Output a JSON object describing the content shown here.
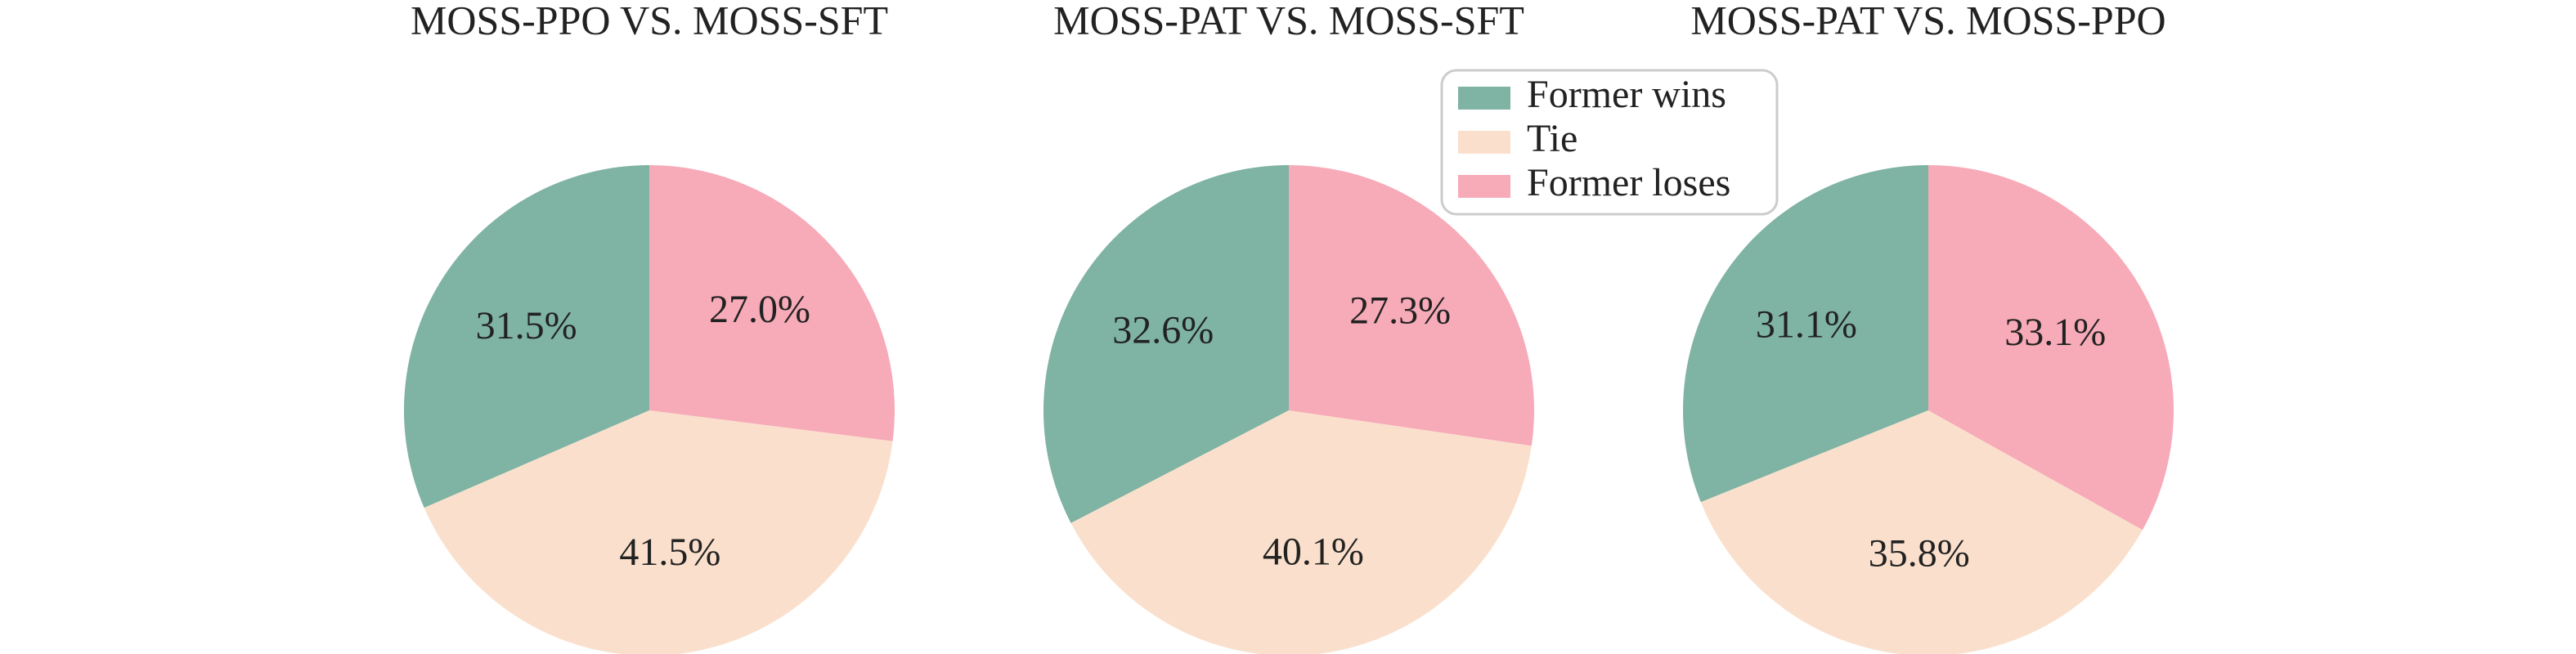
{
  "chart_data": [
    {
      "type": "pie",
      "title": "MOSS-PPO VS. MOSS-SFT",
      "categories": [
        "Former wins",
        "Tie",
        "Former loses"
      ],
      "colors": [
        "#7fb3a3",
        "#fae0cc",
        "#f7aab7"
      ],
      "values": [
        31.5,
        41.5,
        27.0
      ],
      "value_labels": [
        "31.5%",
        "41.5%",
        "27.0%"
      ]
    },
    {
      "type": "pie",
      "title": "MOSS-PAT VS. MOSS-SFT",
      "categories": [
        "Former wins",
        "Tie",
        "Former loses"
      ],
      "colors": [
        "#7fb3a3",
        "#fae0cc",
        "#f7aab7"
      ],
      "values": [
        32.6,
        40.1,
        27.3
      ],
      "value_labels": [
        "32.6%",
        "40.1%",
        "27.3%"
      ],
      "legend": "upper right"
    },
    {
      "type": "pie",
      "title": "MOSS-PAT VS. MOSS-PPO",
      "categories": [
        "Former wins",
        "Tie",
        "Former loses"
      ],
      "colors": [
        "#7fb3a3",
        "#fae0cc",
        "#f7aab7"
      ],
      "values": [
        31.1,
        35.8,
        33.1
      ],
      "value_labels": [
        "31.1%",
        "35.8%",
        "33.1%"
      ]
    }
  ]
}
